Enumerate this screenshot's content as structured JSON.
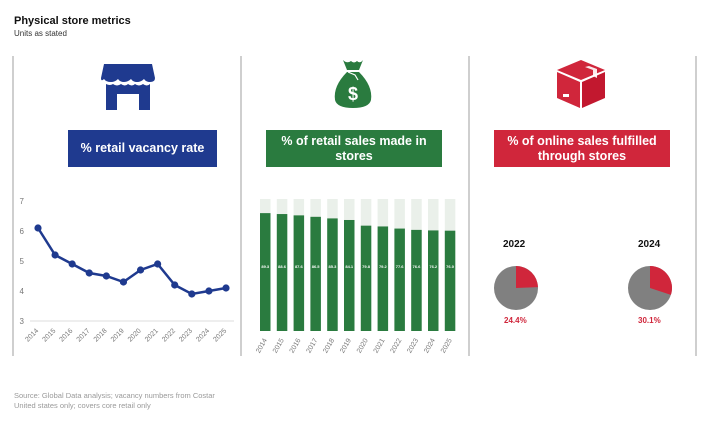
{
  "header": {
    "title": "Physical store metrics",
    "subtitle": "Units as stated"
  },
  "panels": [
    {
      "title": "% retail vacancy rate",
      "icon": "storefront-icon",
      "color": "#1f3a8f"
    },
    {
      "title": "% of retail sales made in stores",
      "icon": "money-bag-icon",
      "color": "#2a7b3f"
    },
    {
      "title": "% of online sales fulfilled through stores",
      "icon": "package-box-icon",
      "color": "#d0263b"
    }
  ],
  "chart_data": [
    {
      "type": "line",
      "title": "% retail vacancy rate",
      "x": [
        "2014",
        "2015",
        "2016",
        "2017",
        "2018",
        "2019",
        "2020",
        "2021",
        "2022",
        "2023",
        "2024",
        "2025"
      ],
      "values": [
        6.1,
        5.2,
        4.9,
        4.6,
        4.5,
        4.3,
        4.7,
        4.9,
        4.2,
        3.9,
        4.0,
        4.1
      ],
      "ylim": [
        3,
        7
      ],
      "yticks": [
        "3",
        "4",
        "5",
        "6",
        "7"
      ],
      "color": "#1f3a8f",
      "grid": false
    },
    {
      "type": "bar",
      "title": "% of retail sales made in stores",
      "categories": [
        "2014",
        "2015",
        "2016",
        "2017",
        "2018",
        "2019",
        "2020",
        "2021",
        "2022",
        "2023",
        "2024",
        "2025"
      ],
      "values": [
        89.3,
        88.6,
        87.6,
        86.5,
        85.3,
        84.1,
        79.8,
        79.2,
        77.6,
        76.6,
        76.2,
        76.0
      ],
      "labels": [
        "89.3",
        "88.6",
        "87.6",
        "86.5",
        "85.3",
        "84.1",
        "79.8",
        "79.2",
        "77.6",
        "76.6",
        "76.2",
        "76.0"
      ],
      "ylim": [
        0,
        100
      ],
      "color": "#2a7b3f",
      "remainder_color": "#eaf0ea"
    },
    {
      "type": "pie",
      "title": "% of online sales fulfilled through stores",
      "pies": [
        {
          "year": "2022",
          "value": 24.4,
          "label": "24.4%"
        },
        {
          "year": "2024",
          "value": 30.1,
          "label": "30.1%"
        }
      ],
      "colors": {
        "share": "#d0263b",
        "rest": "#808080"
      }
    }
  ],
  "footer": {
    "source": "Source: Global Data analysis; vacancy numbers from Costar",
    "note": "United states only; covers core retail only"
  }
}
